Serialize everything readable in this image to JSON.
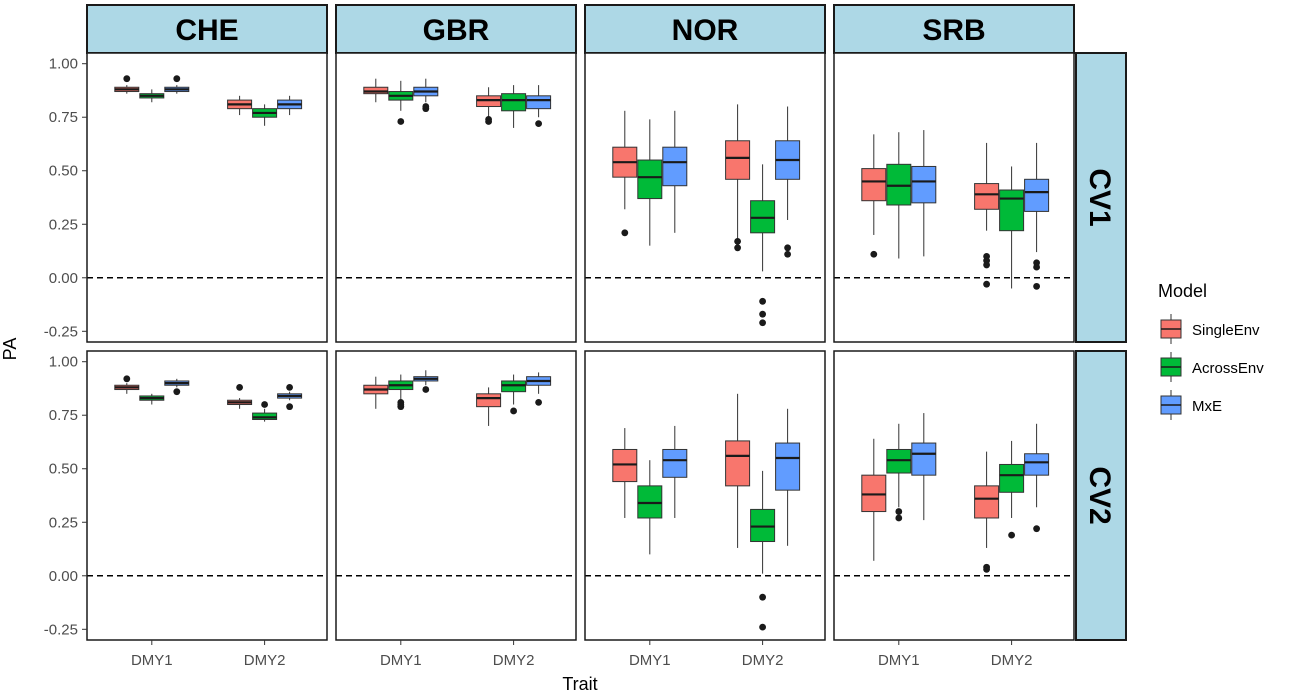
{
  "chart_data": {
    "type": "boxplot",
    "facet_columns": [
      "CHE",
      "GBR",
      "NOR",
      "SRB"
    ],
    "facet_rows": [
      "CV1",
      "CV2"
    ],
    "categories": [
      "DMY1",
      "DMY2"
    ],
    "xlabel": "Trait",
    "ylabel": "PA",
    "ylim": [
      -0.3,
      1.05
    ],
    "yticks": [
      -0.25,
      0.0,
      0.25,
      0.5,
      0.75,
      1.0
    ],
    "ytick_labels": [
      "-0.25",
      "0.00",
      "0.25",
      "0.50",
      "0.75",
      "1.00"
    ],
    "reference_line": 0.0,
    "legend": {
      "title": "Model",
      "entries": [
        {
          "name": "SingleEnv",
          "color": "#F8766D"
        },
        {
          "name": "AcrossEnv",
          "color": "#00BA38"
        },
        {
          "name": "MxE",
          "color": "#619CFF"
        }
      ]
    },
    "panels": [
      {
        "row": "CV1",
        "col": "CHE",
        "boxes": [
          {
            "trait": "DMY1",
            "model": "SingleEnv",
            "min": 0.86,
            "q1": 0.87,
            "median": 0.88,
            "q3": 0.89,
            "max": 0.9,
            "outliers": [
              0.93
            ]
          },
          {
            "trait": "DMY1",
            "model": "AcrossEnv",
            "min": 0.82,
            "q1": 0.84,
            "median": 0.85,
            "q3": 0.86,
            "max": 0.88,
            "outliers": []
          },
          {
            "trait": "DMY1",
            "model": "MxE",
            "min": 0.86,
            "q1": 0.87,
            "median": 0.88,
            "q3": 0.89,
            "max": 0.9,
            "outliers": [
              0.93
            ]
          },
          {
            "trait": "DMY2",
            "model": "SingleEnv",
            "min": 0.76,
            "q1": 0.79,
            "median": 0.81,
            "q3": 0.83,
            "max": 0.85,
            "outliers": []
          },
          {
            "trait": "DMY2",
            "model": "AcrossEnv",
            "min": 0.71,
            "q1": 0.75,
            "median": 0.77,
            "q3": 0.79,
            "max": 0.81,
            "outliers": []
          },
          {
            "trait": "DMY2",
            "model": "MxE",
            "min": 0.76,
            "q1": 0.79,
            "median": 0.81,
            "q3": 0.83,
            "max": 0.85,
            "outliers": []
          }
        ]
      },
      {
        "row": "CV1",
        "col": "GBR",
        "boxes": [
          {
            "trait": "DMY1",
            "model": "SingleEnv",
            "min": 0.82,
            "q1": 0.86,
            "median": 0.87,
            "q3": 0.89,
            "max": 0.93,
            "outliers": []
          },
          {
            "trait": "DMY1",
            "model": "AcrossEnv",
            "min": 0.78,
            "q1": 0.83,
            "median": 0.85,
            "q3": 0.87,
            "max": 0.92,
            "outliers": [
              0.73
            ]
          },
          {
            "trait": "DMY1",
            "model": "MxE",
            "min": 0.82,
            "q1": 0.85,
            "median": 0.87,
            "q3": 0.89,
            "max": 0.93,
            "outliers": [
              0.79,
              0.8
            ]
          },
          {
            "trait": "DMY2",
            "model": "SingleEnv",
            "min": 0.75,
            "q1": 0.8,
            "median": 0.83,
            "q3": 0.85,
            "max": 0.89,
            "outliers": [
              0.73,
              0.74
            ]
          },
          {
            "trait": "DMY2",
            "model": "AcrossEnv",
            "min": 0.7,
            "q1": 0.78,
            "median": 0.83,
            "q3": 0.86,
            "max": 0.9,
            "outliers": []
          },
          {
            "trait": "DMY2",
            "model": "MxE",
            "min": 0.75,
            "q1": 0.79,
            "median": 0.83,
            "q3": 0.85,
            "max": 0.9,
            "outliers": [
              0.72
            ]
          }
        ]
      },
      {
        "row": "CV1",
        "col": "NOR",
        "boxes": [
          {
            "trait": "DMY1",
            "model": "SingleEnv",
            "min": 0.32,
            "q1": 0.47,
            "median": 0.54,
            "q3": 0.61,
            "max": 0.78,
            "outliers": [
              0.21
            ]
          },
          {
            "trait": "DMY1",
            "model": "AcrossEnv",
            "min": 0.15,
            "q1": 0.37,
            "median": 0.47,
            "q3": 0.55,
            "max": 0.74,
            "outliers": []
          },
          {
            "trait": "DMY1",
            "model": "MxE",
            "min": 0.21,
            "q1": 0.43,
            "median": 0.54,
            "q3": 0.61,
            "max": 0.78,
            "outliers": []
          },
          {
            "trait": "DMY2",
            "model": "SingleEnv",
            "min": 0.18,
            "q1": 0.46,
            "median": 0.56,
            "q3": 0.64,
            "max": 0.81,
            "outliers": [
              0.14,
              0.17
            ]
          },
          {
            "trait": "DMY2",
            "model": "AcrossEnv",
            "min": 0.03,
            "q1": 0.21,
            "median": 0.28,
            "q3": 0.36,
            "max": 0.53,
            "outliers": [
              -0.11,
              -0.17,
              -0.21
            ]
          },
          {
            "trait": "DMY2",
            "model": "MxE",
            "min": 0.27,
            "q1": 0.46,
            "median": 0.55,
            "q3": 0.64,
            "max": 0.8,
            "outliers": [
              0.11,
              0.14
            ]
          }
        ]
      },
      {
        "row": "CV1",
        "col": "SRB",
        "boxes": [
          {
            "trait": "DMY1",
            "model": "SingleEnv",
            "min": 0.2,
            "q1": 0.36,
            "median": 0.45,
            "q3": 0.51,
            "max": 0.67,
            "outliers": [
              0.11
            ]
          },
          {
            "trait": "DMY1",
            "model": "AcrossEnv",
            "min": 0.09,
            "q1": 0.34,
            "median": 0.43,
            "q3": 0.53,
            "max": 0.68,
            "outliers": []
          },
          {
            "trait": "DMY1",
            "model": "MxE",
            "min": 0.1,
            "q1": 0.35,
            "median": 0.45,
            "q3": 0.52,
            "max": 0.69,
            "outliers": []
          },
          {
            "trait": "DMY2",
            "model": "SingleEnv",
            "min": 0.22,
            "q1": 0.32,
            "median": 0.39,
            "q3": 0.44,
            "max": 0.63,
            "outliers": [
              0.1,
              0.08,
              0.06,
              -0.03
            ]
          },
          {
            "trait": "DMY2",
            "model": "AcrossEnv",
            "min": -0.05,
            "q1": 0.22,
            "median": 0.37,
            "q3": 0.41,
            "max": 0.52,
            "outliers": []
          },
          {
            "trait": "DMY2",
            "model": "MxE",
            "min": 0.12,
            "q1": 0.31,
            "median": 0.4,
            "q3": 0.46,
            "max": 0.63,
            "outliers": [
              0.07,
              0.05,
              -0.04
            ]
          }
        ]
      },
      {
        "row": "CV2",
        "col": "CHE",
        "boxes": [
          {
            "trait": "DMY1",
            "model": "SingleEnv",
            "min": 0.85,
            "q1": 0.87,
            "median": 0.88,
            "q3": 0.89,
            "max": 0.9,
            "outliers": [
              0.92
            ]
          },
          {
            "trait": "DMY1",
            "model": "AcrossEnv",
            "min": 0.8,
            "q1": 0.82,
            "median": 0.83,
            "q3": 0.84,
            "max": 0.85,
            "outliers": []
          },
          {
            "trait": "DMY1",
            "model": "MxE",
            "min": 0.88,
            "q1": 0.89,
            "median": 0.9,
            "q3": 0.91,
            "max": 0.92,
            "outliers": [
              0.86
            ]
          },
          {
            "trait": "DMY2",
            "model": "SingleEnv",
            "min": 0.78,
            "q1": 0.8,
            "median": 0.81,
            "q3": 0.82,
            "max": 0.83,
            "outliers": [
              0.88
            ]
          },
          {
            "trait": "DMY2",
            "model": "AcrossEnv",
            "min": 0.72,
            "q1": 0.73,
            "median": 0.74,
            "q3": 0.76,
            "max": 0.78,
            "outliers": [
              0.8
            ]
          },
          {
            "trait": "DMY2",
            "model": "MxE",
            "min": 0.82,
            "q1": 0.83,
            "median": 0.84,
            "q3": 0.85,
            "max": 0.86,
            "outliers": [
              0.79,
              0.88
            ]
          }
        ]
      },
      {
        "row": "CV2",
        "col": "GBR",
        "boxes": [
          {
            "trait": "DMY1",
            "model": "SingleEnv",
            "min": 0.78,
            "q1": 0.85,
            "median": 0.87,
            "q3": 0.89,
            "max": 0.93,
            "outliers": []
          },
          {
            "trait": "DMY1",
            "model": "AcrossEnv",
            "min": 0.82,
            "q1": 0.87,
            "median": 0.89,
            "q3": 0.91,
            "max": 0.94,
            "outliers": [
              0.79,
              0.8,
              0.81
            ]
          },
          {
            "trait": "DMY1",
            "model": "MxE",
            "min": 0.89,
            "q1": 0.91,
            "median": 0.92,
            "q3": 0.93,
            "max": 0.96,
            "outliers": [
              0.87
            ]
          },
          {
            "trait": "DMY2",
            "model": "SingleEnv",
            "min": 0.7,
            "q1": 0.79,
            "median": 0.83,
            "q3": 0.85,
            "max": 0.88,
            "outliers": []
          },
          {
            "trait": "DMY2",
            "model": "AcrossEnv",
            "min": 0.8,
            "q1": 0.86,
            "median": 0.89,
            "q3": 0.91,
            "max": 0.94,
            "outliers": [
              0.77
            ]
          },
          {
            "trait": "DMY2",
            "model": "MxE",
            "min": 0.85,
            "q1": 0.89,
            "median": 0.91,
            "q3": 0.93,
            "max": 0.95,
            "outliers": [
              0.81
            ]
          }
        ]
      },
      {
        "row": "CV2",
        "col": "NOR",
        "boxes": [
          {
            "trait": "DMY1",
            "model": "SingleEnv",
            "min": 0.27,
            "q1": 0.44,
            "median": 0.52,
            "q3": 0.59,
            "max": 0.69,
            "outliers": []
          },
          {
            "trait": "DMY1",
            "model": "AcrossEnv",
            "min": 0.1,
            "q1": 0.27,
            "median": 0.34,
            "q3": 0.42,
            "max": 0.54,
            "outliers": []
          },
          {
            "trait": "DMY1",
            "model": "MxE",
            "min": 0.27,
            "q1": 0.46,
            "median": 0.54,
            "q3": 0.59,
            "max": 0.7,
            "outliers": []
          },
          {
            "trait": "DMY2",
            "model": "SingleEnv",
            "min": 0.13,
            "q1": 0.42,
            "median": 0.56,
            "q3": 0.63,
            "max": 0.85,
            "outliers": []
          },
          {
            "trait": "DMY2",
            "model": "AcrossEnv",
            "min": 0.01,
            "q1": 0.16,
            "median": 0.23,
            "q3": 0.31,
            "max": 0.49,
            "outliers": [
              -0.1,
              -0.24
            ]
          },
          {
            "trait": "DMY2",
            "model": "MxE",
            "min": 0.14,
            "q1": 0.4,
            "median": 0.55,
            "q3": 0.62,
            "max": 0.78,
            "outliers": []
          }
        ]
      },
      {
        "row": "CV2",
        "col": "SRB",
        "boxes": [
          {
            "trait": "DMY1",
            "model": "SingleEnv",
            "min": 0.07,
            "q1": 0.3,
            "median": 0.38,
            "q3": 0.47,
            "max": 0.64,
            "outliers": []
          },
          {
            "trait": "DMY1",
            "model": "AcrossEnv",
            "min": 0.32,
            "q1": 0.48,
            "median": 0.54,
            "q3": 0.59,
            "max": 0.71,
            "outliers": [
              0.27,
              0.3
            ]
          },
          {
            "trait": "DMY1",
            "model": "MxE",
            "min": 0.26,
            "q1": 0.47,
            "median": 0.57,
            "q3": 0.62,
            "max": 0.76,
            "outliers": []
          },
          {
            "trait": "DMY2",
            "model": "SingleEnv",
            "min": 0.13,
            "q1": 0.27,
            "median": 0.36,
            "q3": 0.42,
            "max": 0.58,
            "outliers": [
              0.04,
              0.03
            ]
          },
          {
            "trait": "DMY2",
            "model": "AcrossEnv",
            "min": 0.27,
            "q1": 0.39,
            "median": 0.47,
            "q3": 0.52,
            "max": 0.63,
            "outliers": [
              0.19
            ]
          },
          {
            "trait": "DMY2",
            "model": "MxE",
            "min": 0.32,
            "q1": 0.47,
            "median": 0.53,
            "q3": 0.57,
            "max": 0.71,
            "outliers": [
              0.22
            ]
          }
        ]
      }
    ]
  }
}
